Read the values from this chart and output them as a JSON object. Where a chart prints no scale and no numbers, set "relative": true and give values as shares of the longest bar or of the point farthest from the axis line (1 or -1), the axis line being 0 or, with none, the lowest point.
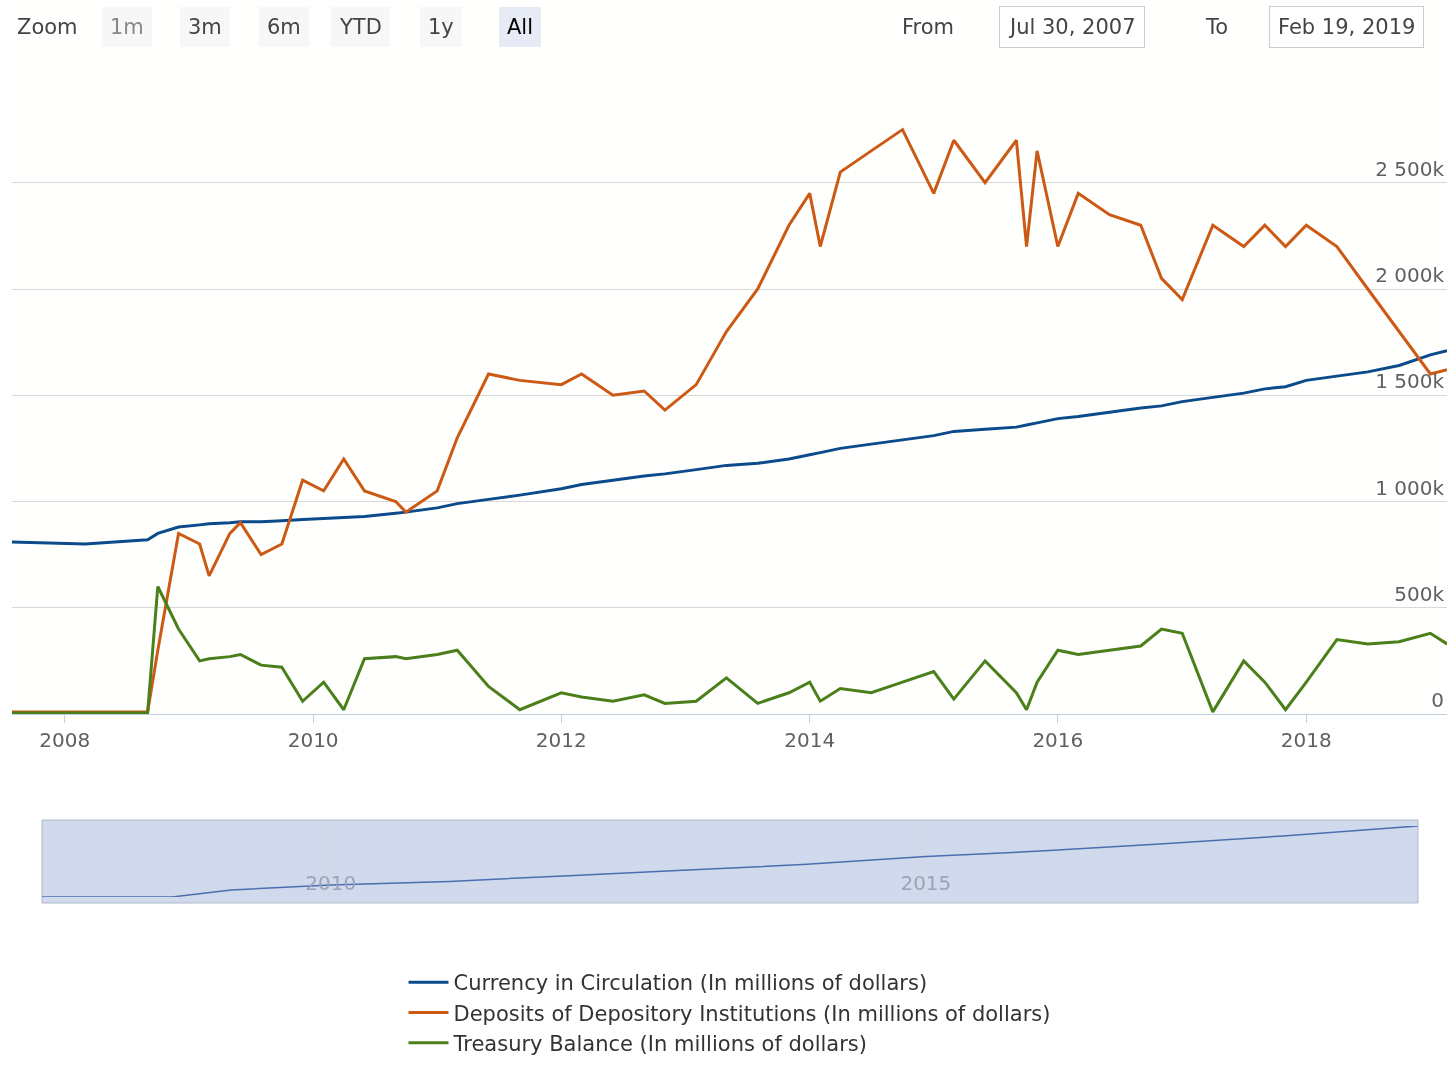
{
  "chart_data": [
    {
      "type": "line",
      "x": [
        "2007-07-30",
        "2008-03",
        "2008-09",
        "2008-10",
        "2008-12",
        "2009-02",
        "2009-03",
        "2009-05",
        "2009-06",
        "2009-08",
        "2009-10",
        "2009-12",
        "2010-02",
        "2010-04",
        "2010-06",
        "2010-09",
        "2010-10",
        "2011-01",
        "2011-03",
        "2011-06",
        "2011-09",
        "2012-01",
        "2012-03",
        "2012-06",
        "2012-09",
        "2012-11",
        "2013-02",
        "2013-05",
        "2013-08",
        "2013-11",
        "2014-01",
        "2014-02",
        "2014-04",
        "2014-07",
        "2014-10",
        "2015-01",
        "2015-03",
        "2015-06",
        "2015-09",
        "2015-10",
        "2015-11",
        "2016-01",
        "2016-03",
        "2016-06",
        "2016-09",
        "2016-11",
        "2017-01",
        "2017-04",
        "2017-07",
        "2017-09",
        "2017-11",
        "2018-01",
        "2018-04",
        "2018-07",
        "2018-10",
        "2019-01",
        "2019-02-19"
      ],
      "series": [
        {
          "name": "Currency in Circulation (In millions of dollars)",
          "color": "#0b4a8b",
          "values": [
            810000,
            800000,
            820000,
            850000,
            880000,
            890000,
            895000,
            900000,
            905000,
            905000,
            910000,
            915000,
            920000,
            925000,
            930000,
            945000,
            950000,
            970000,
            990000,
            1010000,
            1030000,
            1060000,
            1080000,
            1100000,
            1120000,
            1130000,
            1150000,
            1170000,
            1180000,
            1200000,
            1220000,
            1230000,
            1250000,
            1270000,
            1290000,
            1310000,
            1330000,
            1340000,
            1350000,
            1360000,
            1370000,
            1390000,
            1400000,
            1420000,
            1440000,
            1450000,
            1470000,
            1490000,
            1510000,
            1530000,
            1540000,
            1570000,
            1590000,
            1610000,
            1640000,
            1690000,
            1710000
          ]
        },
        {
          "name": "Deposits of Depository Institutions (In millions of dollars)",
          "color": "#cc5a14",
          "values": [
            10000,
            10000,
            10000,
            300000,
            850000,
            800000,
            650000,
            850000,
            900000,
            750000,
            800000,
            1100000,
            1050000,
            1200000,
            1050000,
            1000000,
            950000,
            1050000,
            1300000,
            1600000,
            1570000,
            1550000,
            1600000,
            1500000,
            1520000,
            1430000,
            1550000,
            1800000,
            2000000,
            2300000,
            2450000,
            2200000,
            2550000,
            2650000,
            2750000,
            2450000,
            2700000,
            2500000,
            2700000,
            2200000,
            2650000,
            2200000,
            2450000,
            2350000,
            2300000,
            2050000,
            1950000,
            2300000,
            2200000,
            2300000,
            2200000,
            2300000,
            2200000,
            2000000,
            1800000,
            1600000,
            1620000
          ]
        },
        {
          "name": "Treasury Balance (In millions of dollars)",
          "color": "#4a7f1a",
          "values": [
            5000,
            5000,
            5000,
            600000,
            400000,
            250000,
            260000,
            270000,
            280000,
            230000,
            220000,
            60000,
            150000,
            20000,
            260000,
            270000,
            260000,
            280000,
            300000,
            130000,
            20000,
            100000,
            80000,
            60000,
            90000,
            50000,
            60000,
            170000,
            50000,
            100000,
            150000,
            60000,
            120000,
            100000,
            150000,
            200000,
            70000,
            250000,
            100000,
            20000,
            150000,
            300000,
            280000,
            300000,
            320000,
            400000,
            380000,
            10000,
            250000,
            150000,
            20000,
            150000,
            350000,
            330000,
            340000,
            380000,
            330000
          ]
        }
      ],
      "xlim": [
        "2007-07-30",
        "2019-02-19"
      ],
      "xticks": [
        {
          "value": "2008-01-01",
          "label": "2008"
        },
        {
          "value": "2010-01-01",
          "label": "2010"
        },
        {
          "value": "2012-01-01",
          "label": "2012"
        },
        {
          "value": "2014-01-01",
          "label": "2014"
        },
        {
          "value": "2016-01-01",
          "label": "2016"
        },
        {
          "value": "2018-01-01",
          "label": "2018"
        }
      ],
      "ylim": [
        0,
        3360000
      ],
      "yticks": [
        0,
        {
          "value": 500000,
          "label": "500k"
        },
        {
          "value": 1000000,
          "label": "1 000k"
        },
        {
          "value": 1500000,
          "label": "1 500k"
        },
        {
          "value": 2000000,
          "label": "2 000k"
        },
        {
          "value": 2500000,
          "label": "2 500k"
        }
      ],
      "grid": "y",
      "legend": "bottom",
      "marker": "none",
      "line_style": "solid",
      "annotations": [
        "Zoom",
        "1m",
        "3m",
        "6m",
        "YTD",
        "1y",
        "All",
        "From",
        "Jul 30, 2007",
        "To",
        "Feb 19, 2019"
      ]
    },
    {
      "type": "line",
      "relative": true,
      "x": [
        "2007-07-30",
        "2008-09",
        "2009-03",
        "2010-01",
        "2011-01",
        "2012-01",
        "2013-01",
        "2014-01",
        "2015-01",
        "2016-01",
        "2017-01",
        "2018-01",
        "2019-02-19"
      ],
      "series": [
        {
          "color": "#4a6fb0",
          "values": [
            0,
            0.0,
            0.1,
            0.17,
            0.22,
            0.3,
            0.38,
            0.46,
            0.57,
            0.65,
            0.75,
            0.86,
            1
          ]
        }
      ],
      "xlim": [
        "2007-07-30",
        "2019-02-19"
      ],
      "xticks": [
        {
          "value": "2010-01-01",
          "label": "2010"
        },
        {
          "value": "2015-01-01",
          "label": "2015"
        }
      ],
      "grid": "x",
      "tick_labels": "x",
      "legend": false,
      "marker": "none",
      "line_style": "solid"
    }
  ]
}
